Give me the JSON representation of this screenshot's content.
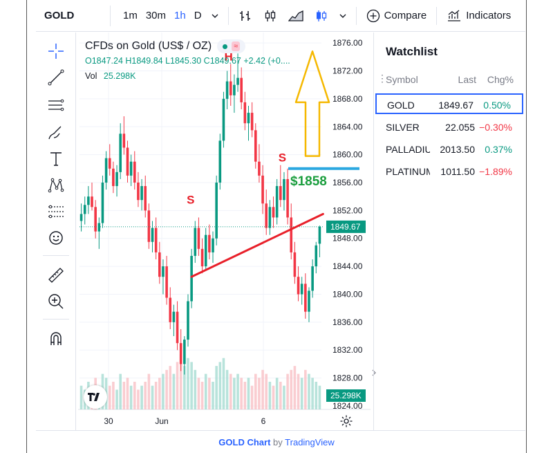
{
  "toolbar": {
    "symbol": "GOLD",
    "intervals": [
      "1m",
      "30m",
      "1h",
      "D"
    ],
    "active_interval": "1h",
    "compare_label": "Compare",
    "indicators_label": "Indicators"
  },
  "legend": {
    "title": "CFDs on Gold (US$ / OZ)",
    "ohlc": "O1847.24 H1849.84 L1845.30 C1849.67 +2.42 (+0....",
    "vol_label": "Vol",
    "vol_value": "25.298K"
  },
  "annotations": {
    "left_shoulder": "S",
    "head": "H",
    "right_shoulder": "S",
    "target_label": "$1858"
  },
  "chart_data": {
    "type": "candlestick",
    "y_axis": {
      "ticks": [
        "1876.00",
        "1872.00",
        "1868.00",
        "1864.00",
        "1860.00",
        "1856.00",
        "1852.00",
        "1848.00",
        "1844.00",
        "1840.00",
        "1836.00",
        "1832.00",
        "1828.00",
        "1824.00"
      ],
      "range": [
        1823.5,
        1877.5
      ]
    },
    "x_axis": {
      "ticks": [
        "30",
        "Jun",
        "6"
      ]
    },
    "last_price": 1849.67,
    "last_price_label": "1849.67",
    "volume_label": "25.298K",
    "target_level": 1858,
    "neckline": {
      "from": 1842.5,
      "to": 1851.5
    },
    "candles": [
      [
        1850.5,
        1853.0,
        1849.0,
        1851.5
      ],
      [
        1851.5,
        1854.0,
        1850.0,
        1852.8
      ],
      [
        1852.8,
        1855.5,
        1851.5,
        1854.0
      ],
      [
        1854.0,
        1856.0,
        1852.0,
        1852.5
      ],
      [
        1852.5,
        1853.5,
        1848.0,
        1849.0
      ],
      [
        1849.0,
        1851.0,
        1846.5,
        1850.2
      ],
      [
        1850.2,
        1857.0,
        1849.5,
        1856.0
      ],
      [
        1856.0,
        1860.5,
        1855.0,
        1859.5
      ],
      [
        1859.5,
        1861.5,
        1857.0,
        1858.0
      ],
      [
        1858.0,
        1859.0,
        1854.5,
        1855.5
      ],
      [
        1855.5,
        1858.5,
        1854.0,
        1857.5
      ],
      [
        1857.5,
        1864.5,
        1856.5,
        1863.0
      ],
      [
        1863.0,
        1865.5,
        1860.0,
        1861.0
      ],
      [
        1861.0,
        1862.0,
        1856.0,
        1857.0
      ],
      [
        1857.0,
        1860.0,
        1855.5,
        1859.0
      ],
      [
        1859.0,
        1860.5,
        1855.0,
        1856.0
      ],
      [
        1856.0,
        1857.5,
        1852.5,
        1853.5
      ],
      [
        1853.5,
        1856.5,
        1852.0,
        1855.5
      ],
      [
        1855.5,
        1857.0,
        1851.0,
        1852.0
      ],
      [
        1852.0,
        1853.0,
        1846.5,
        1847.5
      ],
      [
        1847.5,
        1850.5,
        1846.0,
        1849.5
      ],
      [
        1849.5,
        1851.0,
        1845.0,
        1846.0
      ],
      [
        1846.0,
        1847.5,
        1841.5,
        1842.5
      ],
      [
        1842.5,
        1845.0,
        1840.0,
        1844.0
      ],
      [
        1844.0,
        1845.5,
        1838.5,
        1839.5
      ],
      [
        1839.5,
        1841.0,
        1835.0,
        1836.0
      ],
      [
        1836.0,
        1838.5,
        1834.0,
        1837.5
      ],
      [
        1837.5,
        1839.0,
        1832.0,
        1833.0
      ],
      [
        1833.0,
        1835.0,
        1829.0,
        1830.0
      ],
      [
        1830.0,
        1834.0,
        1828.5,
        1833.5
      ],
      [
        1833.5,
        1840.0,
        1832.5,
        1839.0
      ],
      [
        1839.0,
        1846.5,
        1838.0,
        1845.5
      ],
      [
        1845.5,
        1850.5,
        1844.5,
        1849.5
      ],
      [
        1849.5,
        1851.0,
        1845.5,
        1846.5
      ],
      [
        1846.5,
        1848.0,
        1843.0,
        1844.0
      ],
      [
        1844.0,
        1849.5,
        1843.5,
        1848.5
      ],
      [
        1848.5,
        1850.0,
        1845.0,
        1846.0
      ],
      [
        1846.0,
        1849.0,
        1844.5,
        1848.0
      ],
      [
        1848.0,
        1857.0,
        1847.0,
        1856.0
      ],
      [
        1856.0,
        1863.0,
        1855.0,
        1862.0
      ],
      [
        1862.0,
        1869.0,
        1861.0,
        1868.0
      ],
      [
        1868.0,
        1872.0,
        1866.5,
        1870.5
      ],
      [
        1870.5,
        1873.0,
        1867.0,
        1868.5
      ],
      [
        1868.5,
        1871.5,
        1866.0,
        1870.0
      ],
      [
        1870.0,
        1874.5,
        1869.0,
        1871.0
      ],
      [
        1871.0,
        1872.5,
        1866.5,
        1867.5
      ],
      [
        1867.5,
        1869.0,
        1863.5,
        1864.5
      ],
      [
        1864.5,
        1867.0,
        1862.0,
        1866.0
      ],
      [
        1866.0,
        1867.5,
        1862.5,
        1863.5
      ],
      [
        1863.5,
        1864.5,
        1858.0,
        1859.0
      ],
      [
        1859.0,
        1861.5,
        1856.0,
        1857.0
      ],
      [
        1857.0,
        1858.5,
        1851.5,
        1853.0
      ],
      [
        1853.0,
        1855.0,
        1848.5,
        1849.5
      ],
      [
        1849.5,
        1853.5,
        1848.5,
        1852.5
      ],
      [
        1852.5,
        1854.0,
        1849.5,
        1851.0
      ],
      [
        1851.0,
        1856.5,
        1850.0,
        1855.5
      ],
      [
        1855.5,
        1858.5,
        1852.5,
        1853.5
      ],
      [
        1853.5,
        1857.5,
        1852.0,
        1856.5
      ],
      [
        1856.5,
        1858.0,
        1850.0,
        1851.0
      ],
      [
        1851.0,
        1853.0,
        1845.0,
        1846.0
      ],
      [
        1846.0,
        1847.5,
        1841.5,
        1842.5
      ],
      [
        1842.5,
        1844.0,
        1839.0,
        1840.0
      ],
      [
        1840.0,
        1842.5,
        1838.5,
        1841.5
      ],
      [
        1841.5,
        1843.0,
        1836.5,
        1837.5
      ],
      [
        1837.5,
        1841.0,
        1836.0,
        1840.5
      ],
      [
        1840.5,
        1845.0,
        1839.5,
        1844.0
      ],
      [
        1844.0,
        1847.5,
        1843.0,
        1847.0
      ],
      [
        1847.24,
        1849.84,
        1845.3,
        1849.67
      ]
    ],
    "volume": [
      6,
      5,
      7,
      5,
      8,
      6,
      9,
      8,
      6,
      7,
      5,
      9,
      7,
      8,
      6,
      7,
      5,
      6,
      7,
      9,
      6,
      7,
      8,
      9,
      10,
      11,
      9,
      12,
      14,
      11,
      13,
      12,
      10,
      8,
      7,
      9,
      8,
      7,
      11,
      12,
      13,
      10,
      9,
      8,
      9,
      8,
      7,
      8,
      6,
      9,
      8,
      10,
      9,
      7,
      6,
      8,
      7,
      6,
      9,
      10,
      11,
      9,
      8,
      10,
      9,
      8,
      7,
      6
    ]
  },
  "watchlist": {
    "title": "Watchlist",
    "headers": {
      "symbol": "Symbol",
      "last": "Last",
      "chg": "Chg%"
    },
    "rows": [
      {
        "symbol": "GOLD",
        "last": "1849.67",
        "chg": "0.50%",
        "dir": "up"
      },
      {
        "symbol": "SILVER",
        "last": "22.055",
        "chg": "−0.30%",
        "dir": "dn"
      },
      {
        "symbol": "PALLADIUM",
        "last": "2013.50",
        "chg": "0.37%",
        "dir": "up"
      },
      {
        "symbol": "PLATINUM",
        "last": "1011.50",
        "chg": "−1.89%",
        "dir": "dn"
      }
    ]
  },
  "footer": {
    "symbol": "GOLD",
    "chart_word": "Chart",
    "by": "by",
    "brand": "TradingView"
  },
  "colors": {
    "up": "#089981",
    "down": "#f23645",
    "accent": "#2962ff",
    "annotation": "#e8202a",
    "arrow": "#f5b800",
    "target": "#1b9e3e"
  }
}
